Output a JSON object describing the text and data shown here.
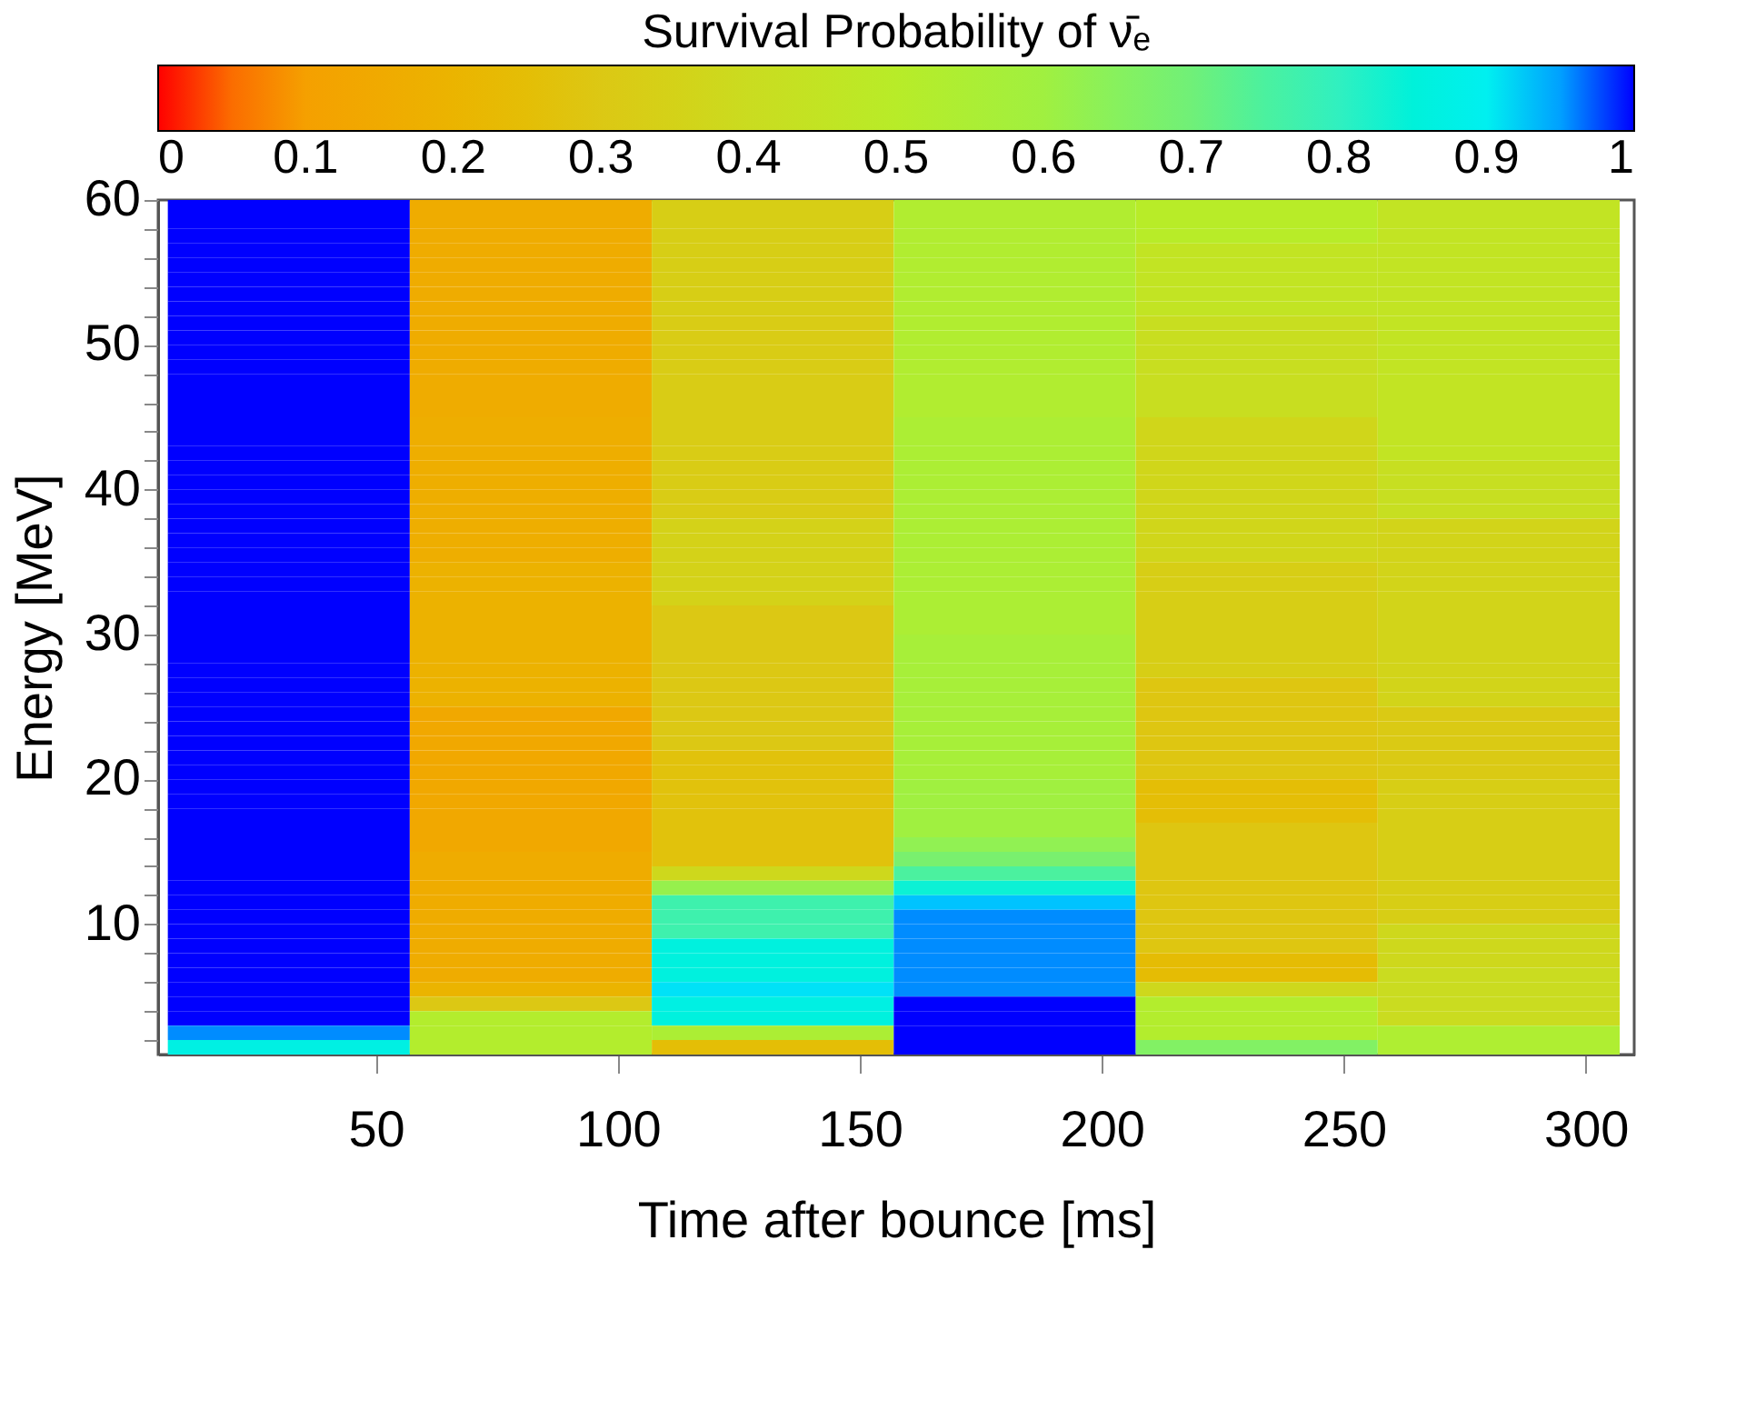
{
  "chart_data": {
    "type": "heatmap",
    "xlabel": "Time after bounce [ms]",
    "ylabel": "Energy [MeV]",
    "clabel": "Survival Probability of ν̄ₑ",
    "x": [
      32,
      82,
      132,
      182,
      232,
      282
    ],
    "y": [
      59.5,
      58.5,
      57.5,
      56.5,
      55.5,
      54.5,
      53.5,
      52.5,
      51.5,
      50.5,
      49.5,
      48.5,
      47.5,
      46.5,
      45.5,
      44.5,
      43.5,
      42.5,
      41.5,
      40.5,
      39.5,
      38.5,
      37.5,
      36.5,
      35.5,
      34.5,
      33.5,
      32.5,
      31.5,
      30.5,
      29.5,
      28.5,
      27.5,
      26.5,
      25.5,
      24.5,
      23.5,
      22.5,
      21.5,
      20.5,
      19.5,
      18.5,
      17.5,
      16.5,
      15.5,
      14.5,
      13.5,
      12.5,
      11.5,
      10.5,
      9.5,
      8.5,
      7.5,
      6.5,
      5.5,
      4.5,
      3.5,
      2.5,
      1.5
    ],
    "cells": [
      [
        1,
        0.16,
        0.33,
        0.53,
        0.5,
        0.45
      ],
      [
        1,
        0.16,
        0.33,
        0.53,
        0.5,
        0.45
      ],
      [
        1,
        0.16,
        0.33,
        0.53,
        0.5,
        0.45
      ],
      [
        1,
        0.16,
        0.33,
        0.53,
        0.45,
        0.45
      ],
      [
        1,
        0.16,
        0.33,
        0.53,
        0.45,
        0.45
      ],
      [
        1,
        0.16,
        0.33,
        0.53,
        0.45,
        0.45
      ],
      [
        1,
        0.16,
        0.33,
        0.53,
        0.45,
        0.45
      ],
      [
        1,
        0.16,
        0.33,
        0.53,
        0.45,
        0.45
      ],
      [
        1,
        0.16,
        0.32,
        0.53,
        0.41,
        0.45
      ],
      [
        1,
        0.16,
        0.32,
        0.53,
        0.41,
        0.45
      ],
      [
        1,
        0.16,
        0.32,
        0.53,
        0.41,
        0.45
      ],
      [
        1,
        0.16,
        0.32,
        0.53,
        0.41,
        0.45
      ],
      [
        1,
        0.16,
        0.32,
        0.53,
        0.41,
        0.45
      ],
      [
        1,
        0.16,
        0.32,
        0.53,
        0.41,
        0.45
      ],
      [
        1,
        0.16,
        0.32,
        0.53,
        0.41,
        0.45
      ],
      [
        1,
        0.17,
        0.32,
        0.55,
        0.37,
        0.45
      ],
      [
        1,
        0.17,
        0.32,
        0.55,
        0.37,
        0.45
      ],
      [
        1,
        0.17,
        0.32,
        0.55,
        0.37,
        0.45
      ],
      [
        1,
        0.17,
        0.32,
        0.55,
        0.37,
        0.42
      ],
      [
        1,
        0.17,
        0.32,
        0.55,
        0.37,
        0.42
      ],
      [
        1,
        0.17,
        0.32,
        0.55,
        0.37,
        0.42
      ],
      [
        1,
        0.17,
        0.32,
        0.55,
        0.37,
        0.42
      ],
      [
        1,
        0.17,
        0.35,
        0.55,
        0.37,
        0.36
      ],
      [
        1,
        0.17,
        0.35,
        0.55,
        0.37,
        0.36
      ],
      [
        1,
        0.17,
        0.35,
        0.55,
        0.37,
        0.36
      ],
      [
        1,
        0.19,
        0.35,
        0.55,
        0.33,
        0.36
      ],
      [
        1,
        0.19,
        0.35,
        0.55,
        0.33,
        0.36
      ],
      [
        1,
        0.19,
        0.35,
        0.55,
        0.33,
        0.36
      ],
      [
        1,
        0.19,
        0.3,
        0.55,
        0.33,
        0.36
      ],
      [
        1,
        0.19,
        0.3,
        0.55,
        0.33,
        0.36
      ],
      [
        1,
        0.19,
        0.3,
        0.57,
        0.33,
        0.36
      ],
      [
        1,
        0.19,
        0.3,
        0.57,
        0.33,
        0.36
      ],
      [
        1,
        0.19,
        0.3,
        0.57,
        0.33,
        0.36
      ],
      [
        1,
        0.19,
        0.3,
        0.57,
        0.29,
        0.36
      ],
      [
        1,
        0.19,
        0.3,
        0.57,
        0.29,
        0.36
      ],
      [
        1,
        0.14,
        0.3,
        0.57,
        0.29,
        0.31
      ],
      [
        1,
        0.14,
        0.3,
        0.57,
        0.29,
        0.31
      ],
      [
        1,
        0.14,
        0.3,
        0.57,
        0.29,
        0.31
      ],
      [
        1,
        0.14,
        0.27,
        0.57,
        0.29,
        0.31
      ],
      [
        1,
        0.14,
        0.27,
        0.57,
        0.29,
        0.31
      ],
      [
        1,
        0.14,
        0.27,
        0.6,
        0.25,
        0.33
      ],
      [
        1,
        0.14,
        0.27,
        0.6,
        0.25,
        0.33
      ],
      [
        1,
        0.14,
        0.27,
        0.6,
        0.25,
        0.33
      ],
      [
        1,
        0.14,
        0.27,
        0.6,
        0.29,
        0.33
      ],
      [
        1,
        0.14,
        0.27,
        0.63,
        0.29,
        0.33
      ],
      [
        1,
        0.16,
        0.27,
        0.68,
        0.29,
        0.33
      ],
      [
        1,
        0.16,
        0.38,
        0.75,
        0.29,
        0.33
      ],
      [
        1,
        0.16,
        0.62,
        0.84,
        0.29,
        0.33
      ],
      [
        1,
        0.16,
        0.77,
        0.93,
        0.29,
        0.33
      ],
      [
        1,
        0.16,
        0.77,
        0.96,
        0.29,
        0.33
      ],
      [
        1,
        0.16,
        0.77,
        0.96,
        0.29,
        0.38
      ],
      [
        1,
        0.16,
        0.86,
        0.96,
        0.29,
        0.38
      ],
      [
        1,
        0.16,
        0.86,
        0.96,
        0.24,
        0.38
      ],
      [
        1,
        0.16,
        0.86,
        0.96,
        0.24,
        0.4
      ],
      [
        1,
        0.2,
        0.91,
        0.96,
        0.38,
        0.4
      ],
      [
        1,
        0.3,
        0.87,
        1,
        0.52,
        0.4
      ],
      [
        1,
        0.52,
        0.86,
        1,
        0.52,
        0.4
      ],
      [
        0.96,
        0.52,
        0.55,
        1,
        0.52,
        0.54
      ],
      [
        0.87,
        0.52,
        0.25,
        1,
        0.66,
        0.54
      ]
    ],
    "xlim": [
      5,
      310
    ],
    "xticks": [
      50,
      100,
      150,
      200,
      250,
      300
    ],
    "ylim": [
      1,
      60
    ],
    "yticks": [
      {
        "value": 2,
        "label": null
      },
      {
        "value": 4,
        "label": null
      },
      {
        "value": 6,
        "label": null
      },
      {
        "value": 8,
        "label": null
      },
      10,
      {
        "value": 12,
        "label": null
      },
      {
        "value": 14,
        "label": null
      },
      {
        "value": 16,
        "label": null
      },
      {
        "value": 18,
        "label": null
      },
      20,
      {
        "value": 22,
        "label": null
      },
      {
        "value": 24,
        "label": null
      },
      {
        "value": 26,
        "label": null
      },
      {
        "value": 28,
        "label": null
      },
      30,
      {
        "value": 32,
        "label": null
      },
      {
        "value": 34,
        "label": null
      },
      {
        "value": 36,
        "label": null
      },
      {
        "value": 38,
        "label": null
      },
      40,
      {
        "value": 42,
        "label": null
      },
      {
        "value": 44,
        "label": null
      },
      {
        "value": 46,
        "label": null
      },
      {
        "value": 48,
        "label": null
      },
      50,
      {
        "value": 52,
        "label": null
      },
      {
        "value": 54,
        "label": null
      },
      {
        "value": 56,
        "label": null
      },
      {
        "value": 58,
        "label": null
      },
      60
    ],
    "clim": [
      0,
      1
    ],
    "cticks": [
      0,
      0.1,
      0.2,
      0.3,
      0.4,
      0.5,
      0.6,
      0.7,
      0.8,
      0.9,
      1
    ]
  }
}
